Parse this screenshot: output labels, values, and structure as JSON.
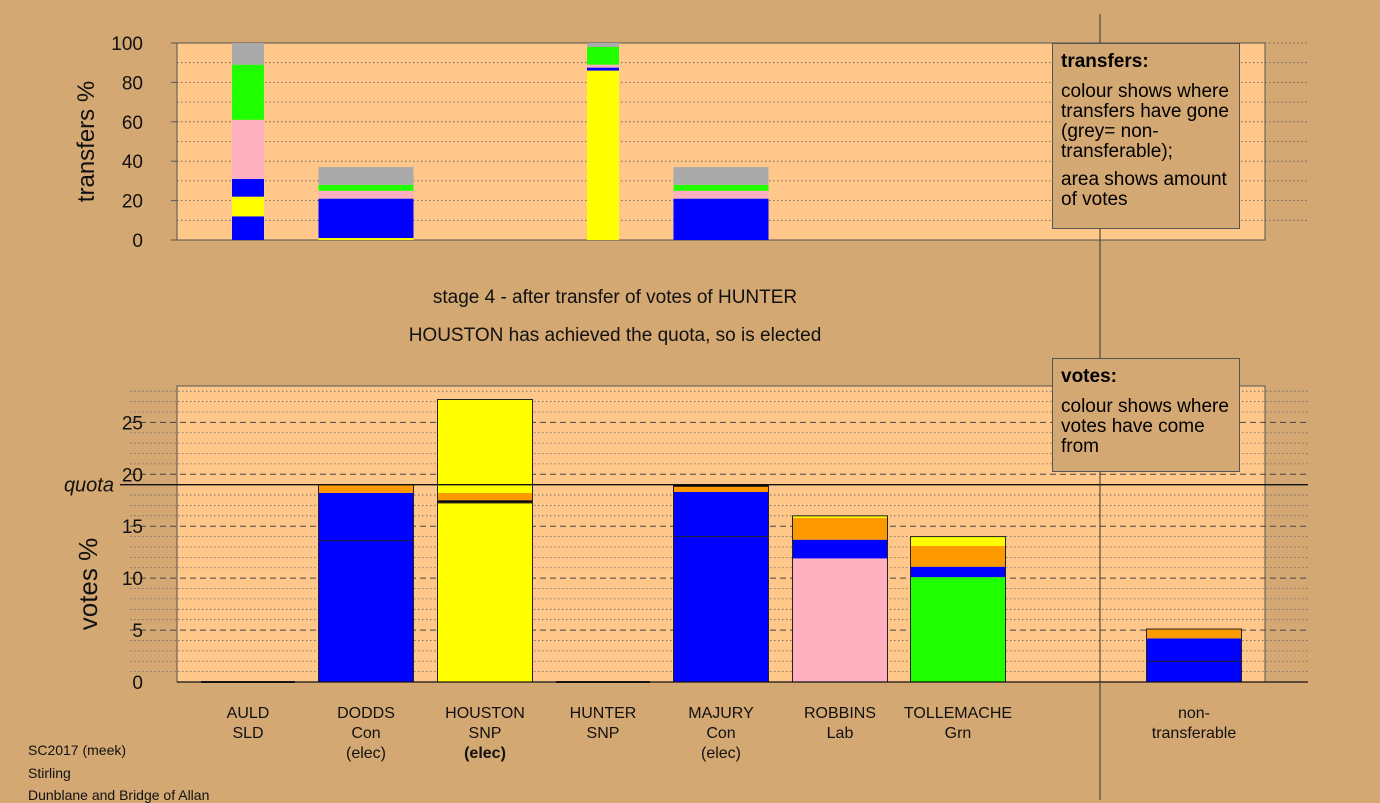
{
  "chart_data": {
    "type": "bar",
    "stacked": true,
    "candidates": [
      {
        "name": "AULD",
        "party": "SLD",
        "status": ""
      },
      {
        "name": "DODDS",
        "party": "Con",
        "status": "(elec)"
      },
      {
        "name": "HOUSTON",
        "party": "SNP",
        "status": "(elec)"
      },
      {
        "name": "HUNTER",
        "party": "SNP",
        "status": ""
      },
      {
        "name": "MAJURY",
        "party": "Con",
        "status": "(elec)"
      },
      {
        "name": "ROBBINS",
        "party": "Lab",
        "status": ""
      },
      {
        "name": "TOLLEMACHE",
        "party": "Grn",
        "status": ""
      }
    ],
    "nontransferable_label": [
      "non-",
      "transferable"
    ],
    "transfers": {
      "ylabel": "transfers %",
      "ylim": [
        0,
        100
      ],
      "yticks": [
        0,
        20,
        40,
        60,
        80,
        100
      ],
      "columns": [
        {
          "candidate": "AULD",
          "width": "narrow",
          "segments": [
            {
              "color": "#0000ff",
              "value": 12
            },
            {
              "color": "#ffff00",
              "value": 10
            },
            {
              "color": "#0000ff",
              "value": 9
            },
            {
              "color": "#ffb0c0",
              "value": 30
            },
            {
              "color": "#20ff00",
              "value": 28
            },
            {
              "color": "#aaaaaa",
              "value": 11
            }
          ]
        },
        {
          "candidate": "DODDS",
          "width": "full",
          "segments": [
            {
              "color": "#ffff00",
              "value": 1
            },
            {
              "color": "#0000ff",
              "value": 20
            },
            {
              "color": "#ffb0c0",
              "value": 4
            },
            {
              "color": "#20ff00",
              "value": 3
            },
            {
              "color": "#aaaaaa",
              "value": 9
            }
          ]
        },
        {
          "candidate": "HUNTER",
          "width": "narrow",
          "segments": [
            {
              "color": "#ffff00",
              "value": 86
            },
            {
              "color": "#0000ff",
              "value": 1.5
            },
            {
              "color": "#ffb0c0",
              "value": 1.5
            },
            {
              "color": "#20ff00",
              "value": 9
            },
            {
              "color": "#aaaaaa",
              "value": 2
            }
          ]
        },
        {
          "candidate": "MAJURY",
          "width": "full",
          "segments": [
            {
              "color": "#0000ff",
              "value": 21
            },
            {
              "color": "#ffb0c0",
              "value": 4
            },
            {
              "color": "#20ff00",
              "value": 3
            },
            {
              "color": "#aaaaaa",
              "value": 9
            }
          ]
        }
      ]
    },
    "votes": {
      "ylabel": "votes %",
      "ylim": [
        0,
        28.5
      ],
      "yticks": [
        0,
        5,
        10,
        15,
        20,
        25
      ],
      "quota": 19,
      "quota_label": "quota",
      "columns": [
        {
          "candidate": "AULD",
          "total": 0,
          "segments": []
        },
        {
          "candidate": "DODDS",
          "total": 19,
          "line_at": 13.6,
          "segments": [
            {
              "color": "#0000ff",
              "value": 18.2
            },
            {
              "color": "#ff9900",
              "value": 0.8
            }
          ]
        },
        {
          "candidate": "HOUSTON",
          "total": 27.2,
          "line_at": 17.3,
          "segments": [
            {
              "color": "#ffff00",
              "value": 17.2
            },
            {
              "color": "#000000",
              "value": 0.3
            },
            {
              "color": "#ff9900",
              "value": 0.7
            },
            {
              "color": "#ffff00",
              "value": 9
            }
          ]
        },
        {
          "candidate": "HUNTER",
          "total": 0,
          "segments": []
        },
        {
          "candidate": "MAJURY",
          "total": 19,
          "line_at": 14,
          "segments": [
            {
              "color": "#0000ff",
              "value": 18.3
            },
            {
              "color": "#ff9900",
              "value": 0.5
            },
            {
              "color": "#000000",
              "value": 0.2
            }
          ]
        },
        {
          "candidate": "ROBBINS",
          "total": 16,
          "segments": [
            {
              "color": "#ffb0c0",
              "value": 11.9
            },
            {
              "color": "#0000ff",
              "value": 1
            },
            {
              "color": "#0000ff",
              "value": 0.8
            },
            {
              "color": "#ff9900",
              "value": 2.1
            },
            {
              "color": "#ffff00",
              "value": 0.2
            }
          ]
        },
        {
          "candidate": "TOLLEMACHE",
          "total": 14,
          "segments": [
            {
              "color": "#20ff00",
              "value": 10.1
            },
            {
              "color": "#0000ff",
              "value": 1
            },
            {
              "color": "#ff9900",
              "value": 2
            },
            {
              "color": "#ffff00",
              "value": 0.9
            }
          ]
        },
        {
          "candidate": "non-transferable",
          "total": 5.1,
          "line_at": 2,
          "segments": [
            {
              "color": "#0000ff",
              "value": 4.2
            },
            {
              "color": "#ff9900",
              "value": 0.9
            }
          ]
        }
      ]
    }
  },
  "captions": {
    "stage": "stage 4 - after transfer of votes of HUNTER",
    "status": "HOUSTON has achieved the quota, so is elected"
  },
  "legends": {
    "transfers": {
      "title": "transfers:",
      "p1": "colour shows where transfers have gone (grey= non-transferable);",
      "p2": "area shows amount of votes"
    },
    "votes": {
      "title": "votes:",
      "p1": "colour shows where votes have come from"
    }
  },
  "info": {
    "line1": "SC2017 (meek)",
    "line2": "Stirling",
    "line3": "Dunblane and Bridge of Allan"
  }
}
